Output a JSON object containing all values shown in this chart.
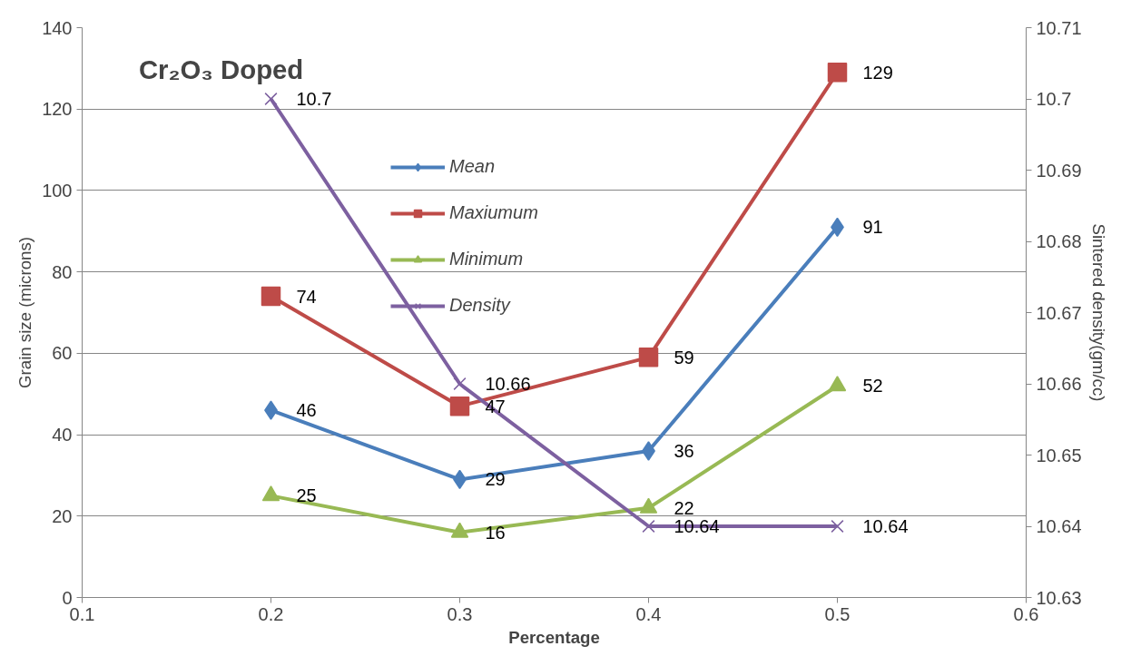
{
  "chart_data": {
    "type": "line",
    "title": "Cr₂O₃ Doped",
    "xlabel": "Percentage",
    "ylabel": "Grain size (microns)",
    "y2label": "Sintered density(gm/cc)",
    "x": [
      0.2,
      0.3,
      0.4,
      0.5
    ],
    "series": [
      {
        "name": "Mean",
        "color": "#4a7ebb",
        "marker": "diamond",
        "values": [
          46,
          29,
          36,
          91
        ]
      },
      {
        "name": "Maxiumum",
        "color": "#be4b48",
        "marker": "square",
        "values": [
          74,
          47,
          59,
          129
        ]
      },
      {
        "name": "Minimum",
        "color": "#98b954",
        "marker": "triangle",
        "values": [
          25,
          16,
          22,
          52
        ]
      },
      {
        "name": "Density",
        "color": "#7d60a0",
        "marker": "cross",
        "axis": "y2",
        "values": [
          10.7,
          10.66,
          10.64,
          10.64
        ]
      }
    ],
    "xlim": [
      0.1,
      0.6
    ],
    "xticks": [
      {
        "value": 0.1,
        "label": "0.1"
      },
      {
        "value": 0.2,
        "label": "0.2"
      },
      {
        "value": 0.3,
        "label": "0.3"
      },
      {
        "value": 0.4,
        "label": "0.4"
      },
      {
        "value": 0.5,
        "label": "0.5"
      },
      {
        "value": 0.6,
        "label": "0.6"
      }
    ],
    "ylim": [
      0,
      140
    ],
    "yticks": [
      0,
      20,
      40,
      60,
      80,
      100,
      120,
      140
    ],
    "y2lim": [
      10.63,
      10.71
    ],
    "y2ticks": [
      10.63,
      10.64,
      10.65,
      10.66,
      10.67,
      10.68,
      10.69,
      10.7,
      10.71
    ],
    "grid": "y",
    "legend": "top",
    "data_labels": true,
    "line_style": "solid"
  }
}
